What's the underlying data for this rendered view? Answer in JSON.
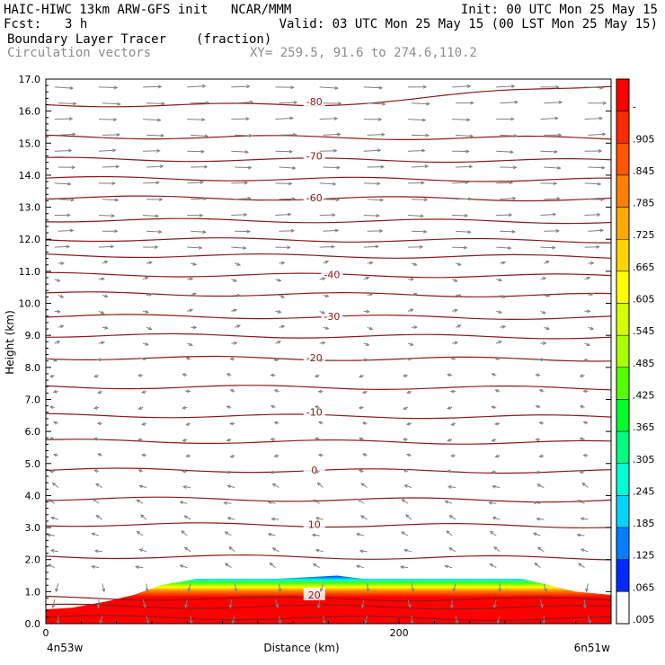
{
  "header": {
    "line1_left": "HAIC-HIWC 13km ARW-GFS init   NCAR/MMM",
    "line1_right": "Init: 00 UTC Mon 25 May 15",
    "fcst_label": "Fcst:",
    "fcst_value": "3 h",
    "valid": "Valid: 03 UTC Mon 25 May 15 (00 LST Mon 25 May 15)",
    "field": "Boundary Layer Tracer",
    "field_units": "(fraction)",
    "vectors": "Circulation vectors",
    "xy": "XY= 259.5, 91.6 to 274.6,110.2"
  },
  "chart_data": {
    "type": "heatmap",
    "xlabel": "Distance (km)",
    "ylabel": "Height (km)",
    "xlim": [
      0,
      320
    ],
    "ylim": [
      0,
      17
    ],
    "x_ticks": [
      {
        "value": 0,
        "label": "0"
      },
      {
        "value": 200,
        "label": "200"
      }
    ],
    "x_end_labels": {
      "left": "4n53w",
      "right": "6n51w"
    },
    "y_ticks": [
      "0.0",
      "1.0",
      "2.0",
      "3.0",
      "4.0",
      "5.0",
      "6.0",
      "7.0",
      "8.0",
      "9.0",
      "10.0",
      "11.0",
      "12.0",
      "13.0",
      "14.0",
      "15.0",
      "16.0",
      "17.0"
    ],
    "colorbar": {
      "labels": [
        "-",
        ".905",
        ".845",
        ".785",
        ".725",
        ".665",
        ".605",
        ".545",
        ".485",
        ".425",
        ".365",
        ".305",
        ".245",
        ".185",
        ".125",
        ".065",
        ".005"
      ],
      "colors": [
        "#ff0000",
        "#ff2a00",
        "#ff5500",
        "#ff7f00",
        "#ffaa00",
        "#ffd400",
        "#ffff00",
        "#d4ff00",
        "#aaff00",
        "#55ff00",
        "#00ff2a",
        "#00ff7f",
        "#00ffd4",
        "#00d4ff",
        "#007fff",
        "#002aff",
        "#ffffff"
      ]
    },
    "contour_labels": [
      {
        "text": "-80",
        "x": 152,
        "y": 16.3
      },
      {
        "text": "-70",
        "x": 152,
        "y": 14.6
      },
      {
        "text": "-60",
        "x": 152,
        "y": 13.3
      },
      {
        "text": "-40",
        "x": 162,
        "y": 10.9
      },
      {
        "text": "-30",
        "x": 162,
        "y": 9.6
      },
      {
        "text": "-20",
        "x": 152,
        "y": 8.3
      },
      {
        "text": "-10",
        "x": 152,
        "y": 6.6
      },
      {
        "text": "0",
        "x": 152,
        "y": 4.8
      },
      {
        "text": "10",
        "x": 152,
        "y": 3.1
      },
      {
        "text": "20",
        "x": 152,
        "y": 0.9
      }
    ],
    "isotherm_heights": [
      0.2,
      0.55,
      0.8,
      2.1,
      3.1,
      3.9,
      4.8,
      5.7,
      6.5,
      7.4,
      8.3,
      9.0,
      9.6,
      10.3,
      10.9,
      11.5,
      12.0,
      12.6,
      13.3,
      13.9,
      14.5,
      15.2,
      16.2
    ],
    "contour_color": "#8b1a1a",
    "vector_color": "#808080",
    "tracer_top_profile": [
      {
        "x": 0,
        "y": 0.45
      },
      {
        "x": 15,
        "y": 0.5
      },
      {
        "x": 35,
        "y": 0.7
      },
      {
        "x": 50,
        "y": 0.9
      },
      {
        "x": 65,
        "y": 1.2
      },
      {
        "x": 85,
        "y": 1.4
      },
      {
        "x": 130,
        "y": 1.4
      },
      {
        "x": 165,
        "y": 1.5
      },
      {
        "x": 180,
        "y": 1.4
      },
      {
        "x": 270,
        "y": 1.4
      },
      {
        "x": 300,
        "y": 1.0
      },
      {
        "x": 320,
        "y": 0.9
      }
    ]
  }
}
